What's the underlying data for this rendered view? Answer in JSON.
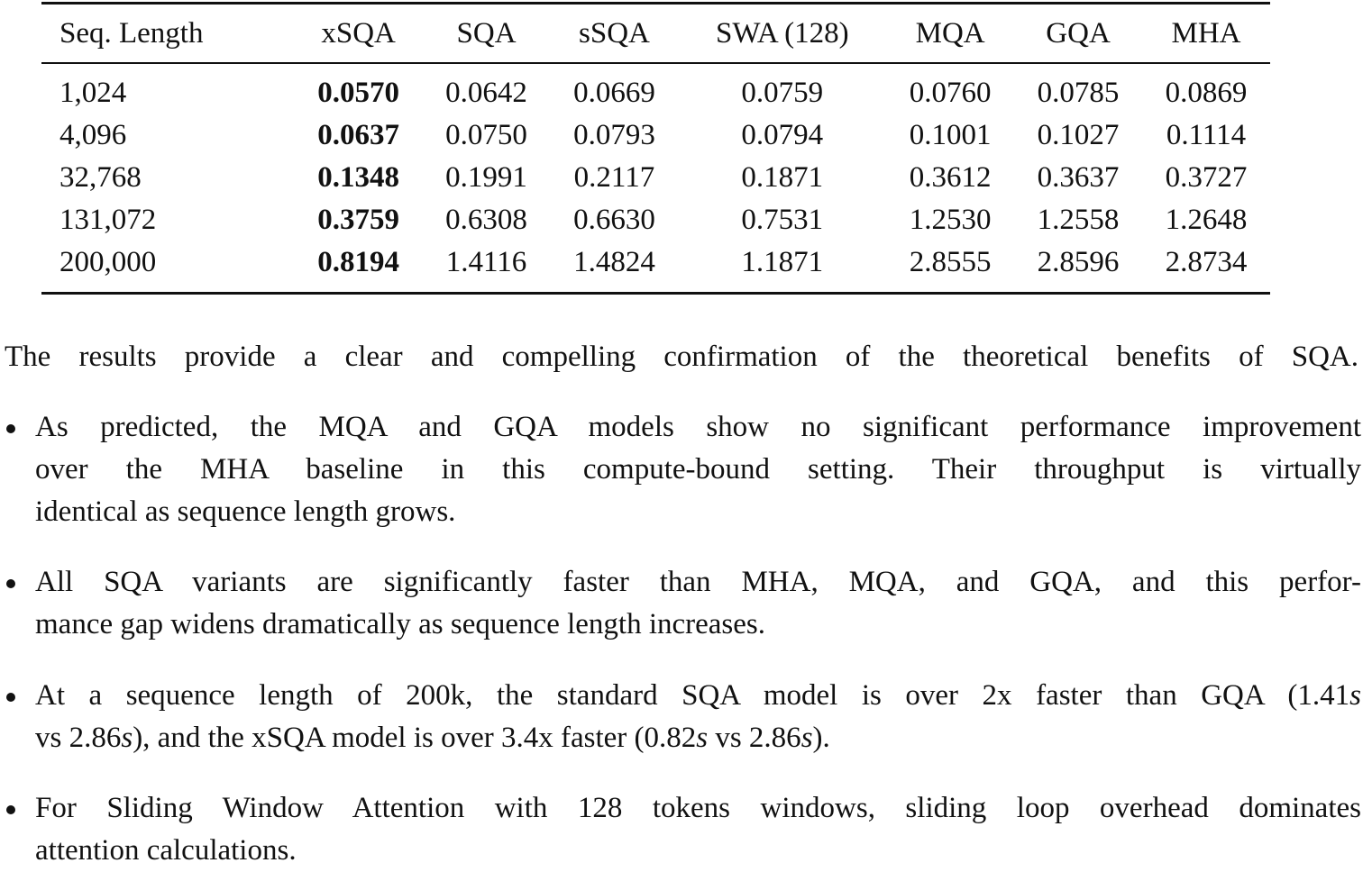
{
  "table": {
    "header": [
      "Seq. Length",
      "xSQA",
      "SQA",
      "sSQA",
      "SWA (128)",
      "MQA",
      "GQA",
      "MHA"
    ],
    "rows": [
      [
        "1,024",
        "0.0570",
        "0.0642",
        "0.0669",
        "0.0759",
        "0.0760",
        "0.0785",
        "0.0869"
      ],
      [
        "4,096",
        "0.0637",
        "0.0750",
        "0.0793",
        "0.0794",
        "0.1001",
        "0.1027",
        "0.1114"
      ],
      [
        "32,768",
        "0.1348",
        "0.1991",
        "0.2117",
        "0.1871",
        "0.3612",
        "0.3637",
        "0.3727"
      ],
      [
        "131,072",
        "0.3759",
        "0.6308",
        "0.6630",
        "0.7531",
        "1.2530",
        "1.2558",
        "1.2648"
      ],
      [
        "200,000",
        "0.8194",
        "1.4116",
        "1.4824",
        "1.1871",
        "2.8555",
        "2.8596",
        "2.8734"
      ]
    ]
  },
  "intro": "The results provide a clear and compelling confirmation of the theoretical benefits of SQA.",
  "bullets": [
    [
      [
        "As predicted, the MQA and GQA models show no significant performance improvement"
      ],
      [
        "over the MHA baseline in this compute-bound setting.  Their throughput is virtually"
      ],
      [
        "identical as sequence length grows."
      ]
    ],
    [
      [
        "All SQA variants are significantly faster than MHA, MQA, and GQA, and this perfor-"
      ],
      [
        "mance gap widens dramatically as sequence length increases."
      ]
    ],
    [
      [
        "At a sequence length of 200k, the standard SQA model is over 2x faster than GQA (1.41",
        "s"
      ],
      [
        "vs 2.86",
        "s",
        "), and the xSQA model is over 3.4x faster (0.82",
        "s",
        " vs 2.86",
        "s",
        ")."
      ]
    ],
    [
      [
        "For Sliding Window Attention with 128 tokens windows, sliding loop overhead dominates"
      ],
      [
        "attention calculations."
      ]
    ]
  ]
}
